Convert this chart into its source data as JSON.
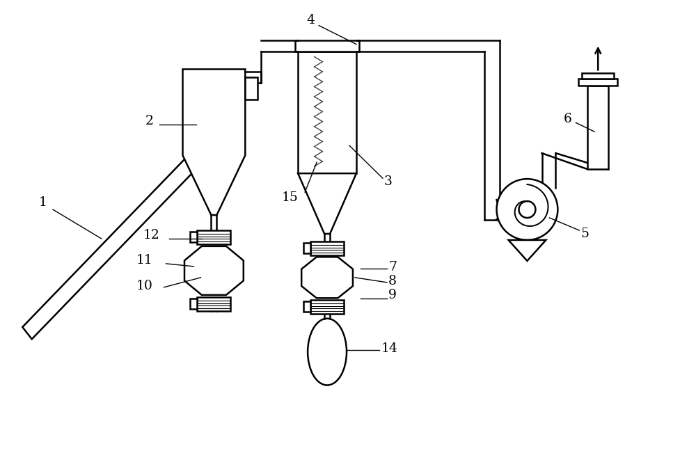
{
  "bg_color": "#ffffff",
  "lc": "#000000",
  "lw": 1.8,
  "fig_w": 10.0,
  "fig_h": 6.51
}
